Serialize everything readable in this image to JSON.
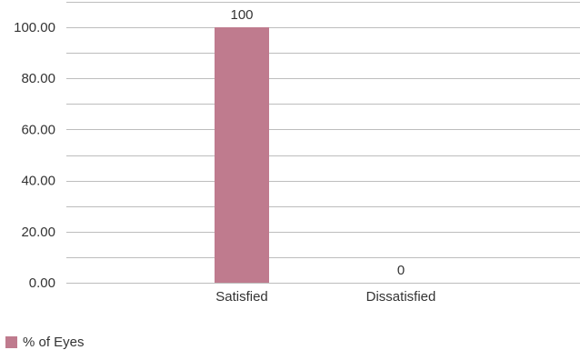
{
  "chart_data": {
    "type": "bar",
    "categories": [
      "Satisfied",
      "Dissatisfied"
    ],
    "series": [
      {
        "name": "% of Eyes",
        "values": [
          100,
          0
        ],
        "color": "#bf7b8e"
      }
    ],
    "data_labels": [
      "100",
      "0"
    ],
    "yticks": [
      "0.00",
      "20.00",
      "40.00",
      "60.00",
      "80.00",
      "100.00"
    ],
    "ylim": [
      0,
      110
    ],
    "grid": true,
    "legend_position": "bottom-left"
  }
}
